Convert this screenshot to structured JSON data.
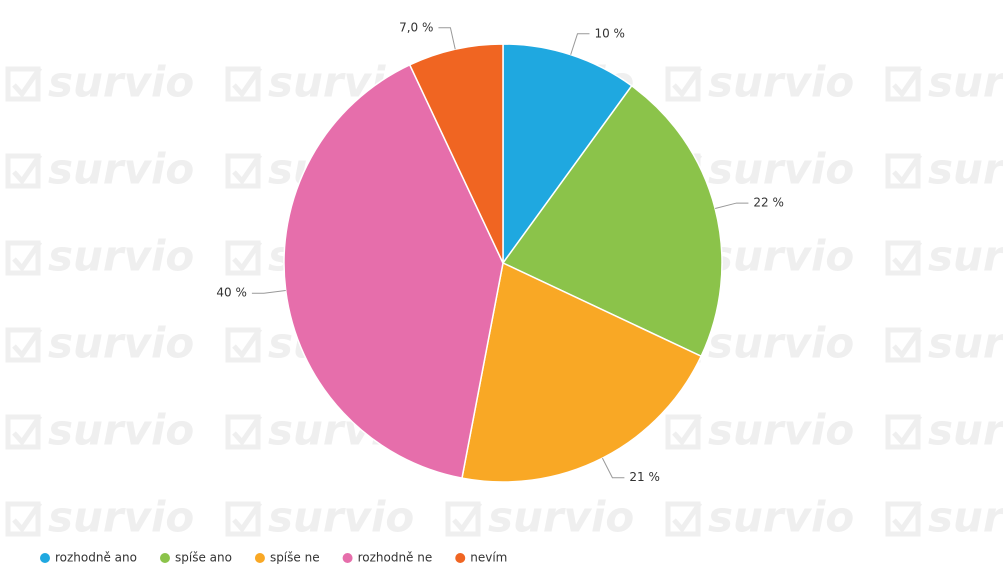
{
  "watermark": "survio",
  "chart_data": {
    "type": "pie",
    "categories": [
      "rozhodně ano",
      "spíše ano",
      "spíše ne",
      "rozhodně ne",
      "nevím"
    ],
    "values": [
      10,
      22,
      21,
      40,
      7
    ],
    "value_labels": [
      "10 %",
      "22 %",
      "21 %",
      "40 %",
      "7,0 %"
    ],
    "colors": [
      "#1fa8e0",
      "#8bc34a",
      "#f9a825",
      "#e66eab",
      "#f06522"
    ],
    "legend": "bottom"
  }
}
